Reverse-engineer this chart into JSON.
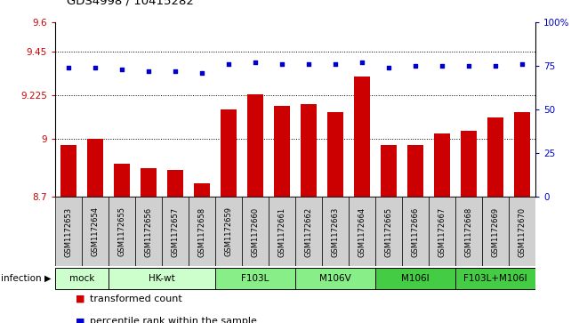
{
  "title": "GDS4998 / 10415282",
  "samples": [
    "GSM1172653",
    "GSM1172654",
    "GSM1172655",
    "GSM1172656",
    "GSM1172657",
    "GSM1172658",
    "GSM1172659",
    "GSM1172660",
    "GSM1172661",
    "GSM1172662",
    "GSM1172663",
    "GSM1172664",
    "GSM1172665",
    "GSM1172666",
    "GSM1172667",
    "GSM1172668",
    "GSM1172669",
    "GSM1172670"
  ],
  "bar_values": [
    8.97,
    9.0,
    8.87,
    8.85,
    8.84,
    8.77,
    9.15,
    9.23,
    9.17,
    9.18,
    9.14,
    9.32,
    8.97,
    8.97,
    9.03,
    9.04,
    9.11,
    9.14
  ],
  "scatter_values": [
    74,
    74,
    73,
    72,
    72,
    71,
    76,
    77,
    76,
    76,
    76,
    77,
    74,
    75,
    75,
    75,
    75,
    76
  ],
  "ylim_left": [
    8.7,
    9.6
  ],
  "ylim_right": [
    0,
    100
  ],
  "yticks_left": [
    8.7,
    9.0,
    9.225,
    9.45,
    9.6
  ],
  "ytick_labels_left": [
    "8.7",
    "9",
    "9.225",
    "9.45",
    "9.6"
  ],
  "yticks_right": [
    0,
    25,
    50,
    75,
    100
  ],
  "ytick_labels_right": [
    "0",
    "25",
    "50",
    "75",
    "100%"
  ],
  "bar_color": "#cc0000",
  "scatter_color": "#0000cc",
  "group_ranges": [
    {
      "label": "mock",
      "cols": [
        0,
        1
      ],
      "color": "#ccffcc"
    },
    {
      "label": "HK-wt",
      "cols": [
        2,
        3,
        4,
        5
      ],
      "color": "#ccffcc"
    },
    {
      "label": "F103L",
      "cols": [
        6,
        7,
        8
      ],
      "color": "#88ee88"
    },
    {
      "label": "M106V",
      "cols": [
        9,
        10,
        11
      ],
      "color": "#88ee88"
    },
    {
      "label": "M106I",
      "cols": [
        12,
        13,
        14
      ],
      "color": "#44cc44"
    },
    {
      "label": "F103L+M106I",
      "cols": [
        15,
        16,
        17
      ],
      "color": "#44cc44"
    }
  ],
  "infection_label": "infection",
  "legend_red": "transformed count",
  "legend_blue": "percentile rank within the sample",
  "grid_values": [
    9.0,
    9.225,
    9.45
  ],
  "bar_width": 0.6,
  "sample_bg_color": "#d0d0d0",
  "plot_bg_color": "#ffffff"
}
